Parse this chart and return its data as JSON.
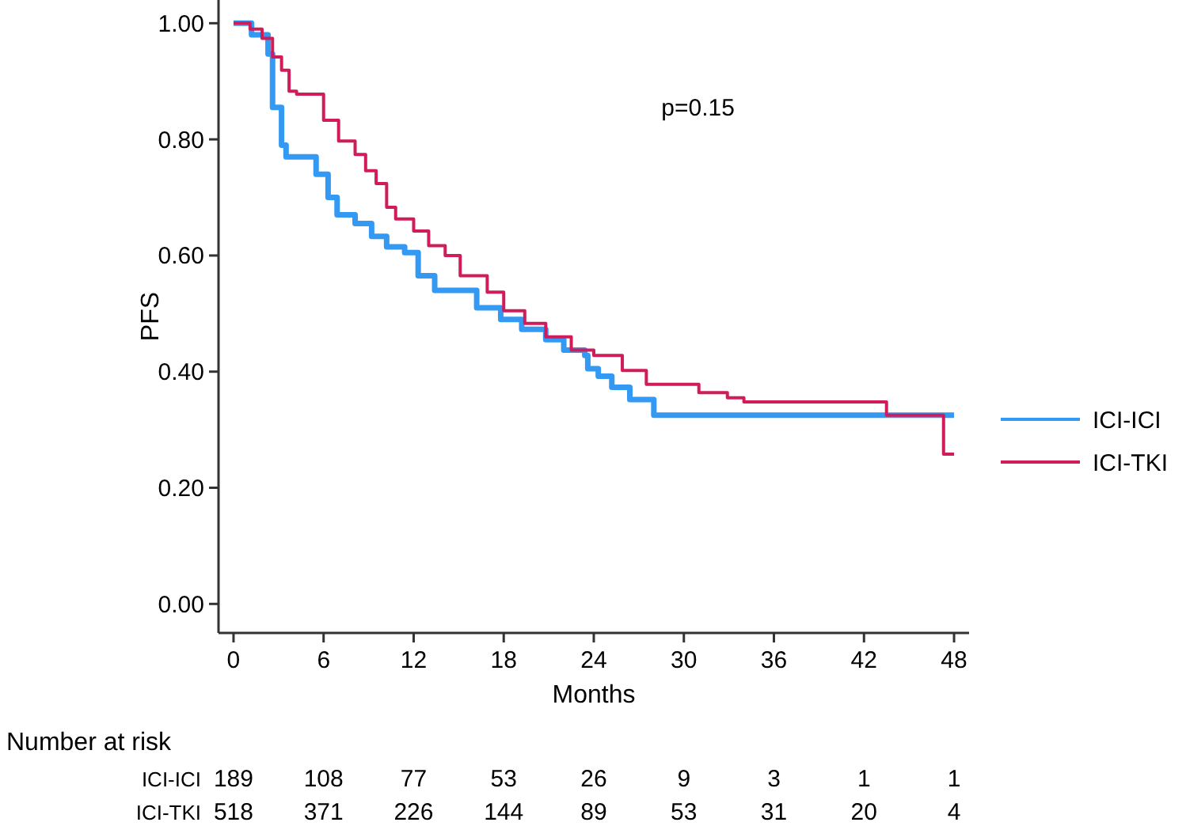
{
  "chart_data": {
    "type": "step",
    "xlabel": "Months",
    "ylabel": "PFS",
    "xlim": [
      -1,
      49
    ],
    "ylim": [
      -0.05,
      1.04
    ],
    "xticks": [
      0,
      6,
      12,
      18,
      24,
      30,
      36,
      42,
      48
    ],
    "yticks": [
      {
        "value": 0,
        "label": "0.00"
      },
      {
        "value": 0.2,
        "label": "0.20"
      },
      {
        "value": 0.4,
        "label": "0.40"
      },
      {
        "value": 0.6,
        "label": "0.60"
      },
      {
        "value": 0.8,
        "label": "0.80"
      },
      {
        "value": 1,
        "label": "1.00"
      }
    ],
    "legend": "right",
    "grid": false,
    "annotations": [
      "p=0.15",
      "Number at risk",
      "ICI-ICI 189 108 77 53 26 9 3 1 1",
      "ICI-TKI 518 371 226 144 89 53 31 20 4"
    ],
    "series": [
      {
        "name": "ICI-ICI",
        "color": "#3399f3",
        "x": [
          0,
          1.2,
          2.3,
          2.6,
          3.2,
          3.5,
          5.5,
          6.3,
          6.9,
          8.1,
          9.2,
          10.2,
          11.4,
          12.3,
          13.4,
          16.2,
          17.8,
          19.2,
          20.8,
          22,
          23.4,
          23.6,
          24.3,
          25.2,
          26.4,
          28,
          48
        ],
        "values": [
          1,
          0.98,
          0.947,
          0.855,
          0.79,
          0.77,
          0.74,
          0.7,
          0.67,
          0.655,
          0.633,
          0.615,
          0.605,
          0.565,
          0.54,
          0.51,
          0.49,
          0.473,
          0.455,
          0.437,
          0.428,
          0.405,
          0.392,
          0.373,
          0.352,
          0.325,
          0.325
        ]
      },
      {
        "name": "ICI-TKI",
        "color": "#d01c5b",
        "x": [
          0,
          1.1,
          1.9,
          2.6,
          3.2,
          3.7,
          4.2,
          6,
          7,
          8.1,
          8.8,
          9.5,
          10.2,
          10.8,
          12,
          13,
          14.1,
          15.1,
          16.9,
          18,
          19.4,
          20.8,
          22.5,
          24,
          25.9,
          27.5,
          31,
          32.9,
          34,
          43.5,
          47.3,
          48
        ],
        "values": [
          1,
          0.99,
          0.974,
          0.942,
          0.919,
          0.883,
          0.878,
          0.833,
          0.797,
          0.774,
          0.746,
          0.724,
          0.683,
          0.663,
          0.642,
          0.617,
          0.6,
          0.565,
          0.537,
          0.505,
          0.483,
          0.46,
          0.437,
          0.428,
          0.402,
          0.378,
          0.364,
          0.355,
          0.348,
          0.325,
          0.258,
          0.258
        ]
      }
    ]
  }
}
